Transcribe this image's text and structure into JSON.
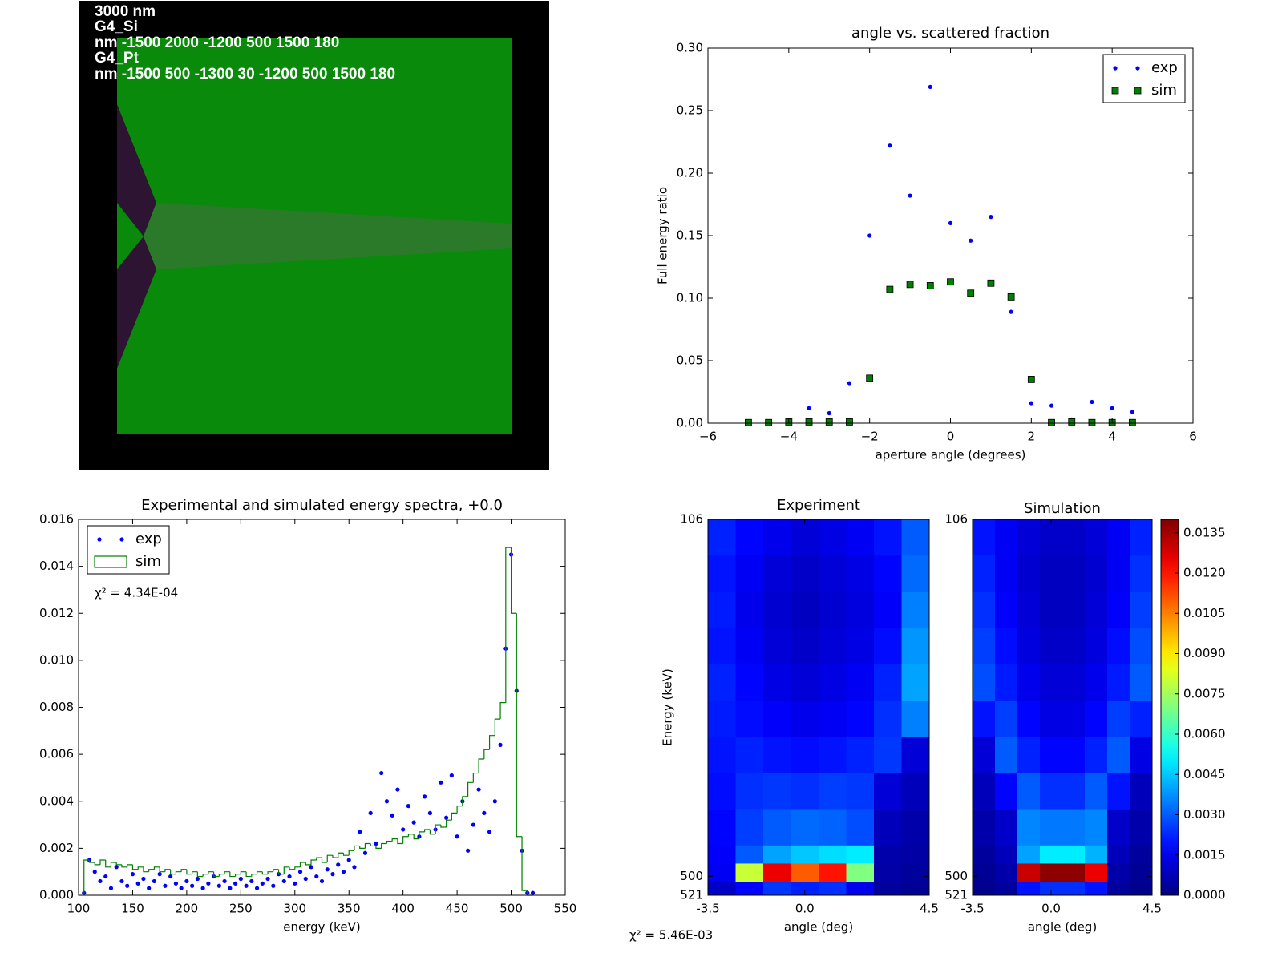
{
  "geometry": {
    "lines": [
      "3000 nm",
      "G4_Si",
      "nm -1500 2000 -1200 500 1500 180",
      "G4_Pt",
      "nm -1500 500 -1300 30 -1200 500 1500 180"
    ]
  },
  "chart_data": [
    {
      "type": "scatter",
      "title": "angle vs. scattered fraction",
      "xlabel": "aperture angle (degrees)",
      "ylabel": "Full energy ratio",
      "xlim": [
        -6,
        6
      ],
      "ylim": [
        0,
        0.3
      ],
      "xticks": [
        {
          "value": -6,
          "label": "−6"
        },
        {
          "value": -4,
          "label": "−4"
        },
        {
          "value": -2,
          "label": "−2"
        },
        0,
        2,
        4,
        6
      ],
      "yticks": [
        {
          "value": 0,
          "label": "0.00"
        },
        {
          "value": 0.05,
          "label": "0.05"
        },
        {
          "value": 0.1,
          "label": "0.10"
        },
        {
          "value": 0.15,
          "label": "0.15"
        },
        {
          "value": 0.2,
          "label": "0.20"
        },
        {
          "value": 0.25,
          "label": "0.25"
        },
        {
          "value": 0.3,
          "label": "0.30"
        }
      ],
      "legend": "upper right",
      "x": [
        -5,
        -4.5,
        -4,
        -3.5,
        -3,
        -2.5,
        -2,
        -1.5,
        -1,
        -0.5,
        0,
        0.5,
        1,
        1.5,
        2,
        2.5,
        3,
        3.5,
        4,
        4.5
      ],
      "series": [
        {
          "name": "exp",
          "type": "dot",
          "color": "#0000ff",
          "values": [
            0.0005,
            0.0005,
            0.001,
            0.012,
            0.008,
            0.032,
            0.15,
            0.222,
            0.182,
            0.269,
            0.16,
            0.146,
            0.165,
            0.089,
            0.016,
            0.014,
            0.003,
            0.017,
            0.012,
            0.009
          ]
        },
        {
          "name": "sim",
          "type": "square",
          "color": "#007f00",
          "values": [
            0.0005,
            0.0005,
            0.001,
            0.001,
            0.001,
            0.001,
            0.036,
            0.107,
            0.111,
            0.11,
            0.113,
            0.104,
            0.112,
            0.101,
            0.035,
            0.0005,
            0.001,
            0.0005,
            0.0005,
            0.0005
          ]
        }
      ]
    },
    {
      "type": "combo",
      "title": "Experimental and simulated energy spectra, +0.0",
      "xlabel": "energy (keV)",
      "annotation": "χ² = 4.34E-04",
      "xlim": [
        100,
        550
      ],
      "ylim": [
        0,
        0.016
      ],
      "xticks": [
        100,
        150,
        200,
        250,
        300,
        350,
        400,
        450,
        500,
        550
      ],
      "yticks": [
        {
          "value": 0,
          "label": "0.000"
        },
        {
          "value": 0.002,
          "label": "0.002"
        },
        {
          "value": 0.004,
          "label": "0.004"
        },
        {
          "value": 0.006,
          "label": "0.006"
        },
        {
          "value": 0.008,
          "label": "0.008"
        },
        {
          "value": 0.01,
          "label": "0.010"
        },
        {
          "value": 0.012,
          "label": "0.012"
        },
        {
          "value": 0.014,
          "label": "0.014"
        },
        {
          "value": 0.016,
          "label": "0.016"
        }
      ],
      "legend": "upper left",
      "series": [
        {
          "name": "exp",
          "type": "dot",
          "color": "#0000ff",
          "x": [
            105,
            110,
            115,
            120,
            125,
            130,
            135,
            140,
            145,
            150,
            155,
            160,
            165,
            170,
            175,
            180,
            185,
            190,
            195,
            200,
            205,
            210,
            215,
            220,
            225,
            230,
            235,
            240,
            245,
            250,
            255,
            260,
            265,
            270,
            275,
            280,
            285,
            290,
            295,
            300,
            305,
            310,
            315,
            320,
            325,
            330,
            335,
            340,
            345,
            350,
            355,
            360,
            365,
            370,
            375,
            380,
            385,
            390,
            395,
            400,
            405,
            410,
            415,
            420,
            425,
            430,
            435,
            440,
            445,
            450,
            455,
            460,
            465,
            470,
            475,
            480,
            485,
            490,
            495,
            500,
            505,
            510,
            515,
            520
          ],
          "values": [
            0.0001,
            0.0015,
            0.001,
            0.0006,
            0.0008,
            0.0003,
            0.0012,
            0.0006,
            0.0004,
            0.0009,
            0.0005,
            0.0007,
            0.0003,
            0.0006,
            0.0009,
            0.0004,
            0.0008,
            0.0005,
            0.0003,
            0.0006,
            0.0004,
            0.0007,
            0.0003,
            0.0005,
            0.0008,
            0.0004,
            0.0006,
            0.0003,
            0.0005,
            0.0007,
            0.0004,
            0.0006,
            0.0003,
            0.0005,
            0.0007,
            0.0004,
            0.0009,
            0.0006,
            0.0008,
            0.0005,
            0.001,
            0.0007,
            0.0012,
            0.0008,
            0.0006,
            0.0011,
            0.0009,
            0.0013,
            0.001,
            0.0015,
            0.0012,
            0.0027,
            0.0018,
            0.0035,
            0.0022,
            0.0052,
            0.004,
            0.0034,
            0.0045,
            0.0028,
            0.0038,
            0.0031,
            0.0025,
            0.0042,
            0.0035,
            0.0028,
            0.0048,
            0.0033,
            0.0051,
            0.0025,
            0.004,
            0.0019,
            0.003,
            0.0045,
            0.0035,
            0.0027,
            0.004,
            0.0064,
            0.0105,
            0.0145,
            0.0087,
            0.0019,
            0.0001,
            0.0001
          ]
        },
        {
          "name": "sim",
          "type": "step",
          "color": "#007f00",
          "bins": [
            105,
            110,
            115,
            120,
            125,
            130,
            135,
            140,
            145,
            150,
            155,
            160,
            165,
            170,
            175,
            180,
            185,
            190,
            195,
            200,
            205,
            210,
            215,
            220,
            225,
            230,
            235,
            240,
            245,
            250,
            255,
            260,
            265,
            270,
            275,
            280,
            285,
            290,
            295,
            300,
            305,
            310,
            315,
            320,
            325,
            330,
            335,
            340,
            345,
            350,
            355,
            360,
            365,
            370,
            375,
            380,
            385,
            390,
            395,
            400,
            405,
            410,
            415,
            420,
            425,
            430,
            435,
            440,
            445,
            450,
            455,
            460,
            465,
            470,
            475,
            480,
            485,
            490,
            495,
            500,
            505,
            510,
            515,
            520
          ],
          "values": [
            0.0015,
            0.0014,
            0.0013,
            0.0015,
            0.0012,
            0.0014,
            0.0013,
            0.0012,
            0.0013,
            0.0011,
            0.0012,
            0.001,
            0.0011,
            0.0012,
            0.001,
            0.0011,
            0.0009,
            0.001,
            0.0011,
            0.0009,
            0.001,
            0.0008,
            0.0009,
            0.001,
            0.0008,
            0.0009,
            0.001,
            0.0008,
            0.0009,
            0.001,
            0.0008,
            0.0009,
            0.001,
            0.0009,
            0.001,
            0.0011,
            0.0009,
            0.0012,
            0.0011,
            0.0012,
            0.0014,
            0.0013,
            0.0015,
            0.0016,
            0.0014,
            0.0017,
            0.0016,
            0.0018,
            0.0017,
            0.0019,
            0.0021,
            0.002,
            0.0022,
            0.0021,
            0.002,
            0.0022,
            0.0023,
            0.0024,
            0.0022,
            0.0025,
            0.0026,
            0.0024,
            0.0027,
            0.0028,
            0.0026,
            0.003,
            0.0029,
            0.0032,
            0.0035,
            0.0038,
            0.0042,
            0.0048,
            0.0052,
            0.0058,
            0.0062,
            0.0068,
            0.0075,
            0.0082,
            0.0148,
            0.012,
            0.0025,
            0.0002,
            0.0
          ]
        }
      ]
    },
    {
      "type": "heatmap",
      "xlabel": "angle (deg)",
      "ylabel": "Energy (keV)",
      "annotation": "χ² = 5.46E-03",
      "xlim": [
        -3.5,
        4.5
      ],
      "ylim": [
        521,
        106
      ],
      "xticks": [
        -3.5,
        {
          "value": 0,
          "label": "0.0"
        },
        4.5
      ],
      "yticks": [
        106,
        500,
        521
      ],
      "x_edges": [
        -3.5,
        -2.5,
        -1.5,
        -0.5,
        0.5,
        1.5,
        2.5,
        3.5,
        4.5
      ],
      "y_edges": [
        106,
        146,
        186,
        226,
        266,
        306,
        346,
        386,
        426,
        466,
        486,
        506,
        521
      ],
      "colorbar": {
        "clim": [
          0,
          0.014
        ],
        "ticks": [
          {
            "value": 0,
            "label": "0.0000"
          },
          {
            "value": 0.0015,
            "label": "0.0015"
          },
          {
            "value": 0.003,
            "label": "0.0030"
          },
          {
            "value": 0.0045,
            "label": "0.0045"
          },
          {
            "value": 0.006,
            "label": "0.0060"
          },
          {
            "value": 0.0075,
            "label": "0.0075"
          },
          {
            "value": 0.009,
            "label": "0.0090"
          },
          {
            "value": 0.0105,
            "label": "0.0105"
          },
          {
            "value": 0.012,
            "label": "0.0120"
          },
          {
            "value": 0.0135,
            "label": "0.0135"
          }
        ]
      },
      "panels": [
        {
          "title": "Experiment",
          "z": [
            [
              0.0022,
              0.0018,
              0.0015,
              0.0012,
              0.0014,
              0.0016,
              0.002,
              0.003
            ],
            [
              0.002,
              0.0016,
              0.0012,
              0.001,
              0.0012,
              0.0014,
              0.0018,
              0.0032
            ],
            [
              0.0021,
              0.0015,
              0.0011,
              0.0009,
              0.0011,
              0.0013,
              0.0017,
              0.0035
            ],
            [
              0.002,
              0.0016,
              0.0012,
              0.001,
              0.0012,
              0.0014,
              0.0019,
              0.0038
            ],
            [
              0.0022,
              0.0018,
              0.0014,
              0.0012,
              0.0014,
              0.0016,
              0.0022,
              0.004
            ],
            [
              0.0021,
              0.0019,
              0.0017,
              0.0015,
              0.0016,
              0.0018,
              0.0024,
              0.0035
            ],
            [
              0.002,
              0.0022,
              0.002,
              0.0019,
              0.002,
              0.0022,
              0.0025,
              0.0012
            ],
            [
              0.0019,
              0.0024,
              0.0025,
              0.0024,
              0.0026,
              0.0025,
              0.0012,
              0.0008
            ],
            [
              0.0018,
              0.0026,
              0.003,
              0.0032,
              0.0031,
              0.0028,
              0.0008,
              0.0006
            ],
            [
              0.0017,
              0.003,
              0.004,
              0.0045,
              0.0048,
              0.005,
              0.0006,
              0.0005
            ],
            [
              0.0016,
              0.008,
              0.0125,
              0.011,
              0.012,
              0.007,
              0.0005,
              0.0004
            ],
            [
              0.001,
              0.0018,
              0.0025,
              0.0022,
              0.0024,
              0.0015,
              0.0004,
              0.0003
            ]
          ]
        },
        {
          "title": "Simulation",
          "z": [
            [
              0.002,
              0.0016,
              0.0012,
              0.001,
              0.001,
              0.0012,
              0.0016,
              0.0022
            ],
            [
              0.0022,
              0.0016,
              0.0011,
              0.0009,
              0.0009,
              0.0011,
              0.0016,
              0.0024
            ],
            [
              0.0024,
              0.0017,
              0.0012,
              0.0009,
              0.0009,
              0.0012,
              0.0017,
              0.0026
            ],
            [
              0.0026,
              0.0019,
              0.0013,
              0.001,
              0.001,
              0.0013,
              0.0019,
              0.0028
            ],
            [
              0.0028,
              0.0021,
              0.0015,
              0.0012,
              0.0012,
              0.0015,
              0.0021,
              0.003
            ],
            [
              0.002,
              0.0026,
              0.0018,
              0.0014,
              0.0014,
              0.0018,
              0.0026,
              0.0022
            ],
            [
              0.0012,
              0.003,
              0.0022,
              0.0018,
              0.0018,
              0.0022,
              0.003,
              0.0014
            ],
            [
              0.0008,
              0.0018,
              0.003,
              0.0024,
              0.0024,
              0.003,
              0.002,
              0.0008
            ],
            [
              0.0006,
              0.001,
              0.0036,
              0.0034,
              0.0034,
              0.0036,
              0.001,
              0.0006
            ],
            [
              0.0004,
              0.0008,
              0.004,
              0.005,
              0.005,
              0.0042,
              0.0008,
              0.0004
            ],
            [
              0.0003,
              0.0006,
              0.013,
              0.0138,
              0.0138,
              0.0125,
              0.0006,
              0.0003
            ],
            [
              0.0002,
              0.0004,
              0.002,
              0.0024,
              0.0024,
              0.002,
              0.0004,
              0.0002
            ]
          ]
        }
      ]
    }
  ]
}
